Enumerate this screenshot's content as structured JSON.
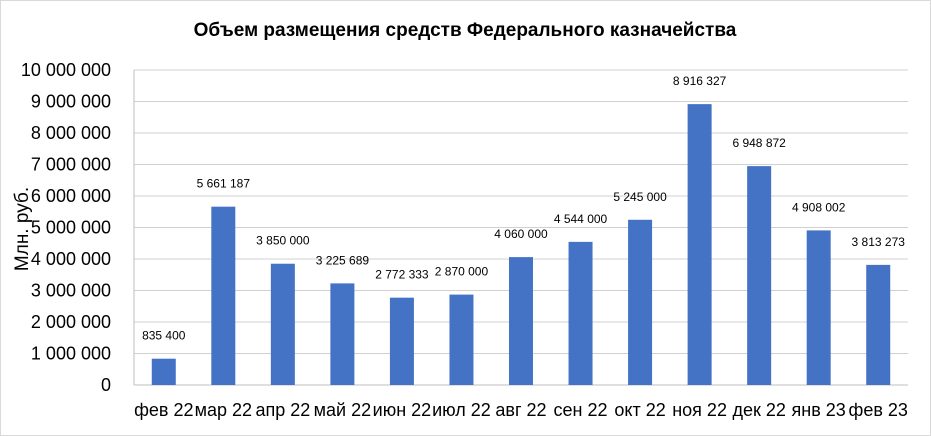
{
  "chart_data": {
    "type": "bar",
    "title": "Объем размещения средств Федерального казначейства",
    "ylabel": "Млн. руб.",
    "xlabel": "",
    "ylim": [
      0,
      10000000
    ],
    "yticks": [
      0,
      1000000,
      2000000,
      3000000,
      4000000,
      5000000,
      6000000,
      7000000,
      8000000,
      9000000,
      10000000
    ],
    "ytick_labels": [
      "0",
      "1 000 000",
      "2 000 000",
      "3 000 000",
      "4 000 000",
      "5 000 000",
      "6 000 000",
      "7 000 000",
      "8 000 000",
      "9 000 000",
      "10 000 000"
    ],
    "categories": [
      "фев 22",
      "мар 22",
      "апр 22",
      "май 22",
      "июн 22",
      "июл 22",
      "авг 22",
      "сен 22",
      "окт 22",
      "ноя 22",
      "дек 22",
      "янв 23",
      "фев 23"
    ],
    "values": [
      835400,
      5661187,
      3850000,
      3225689,
      2772333,
      2870000,
      4060000,
      4544000,
      5245000,
      8916327,
      6948872,
      4908002,
      3813273
    ],
    "value_labels": [
      "835 400",
      "5 661 187",
      "3 850 000",
      "3 225 689",
      "2 772 333",
      "2 870 000",
      "4 060 000",
      "4 544 000",
      "5 245 000",
      "8 916 327",
      "6 948 872",
      "4 908 002",
      "3 813 273"
    ],
    "grid": true,
    "legend": "none",
    "bar_color": "#4472C4"
  }
}
